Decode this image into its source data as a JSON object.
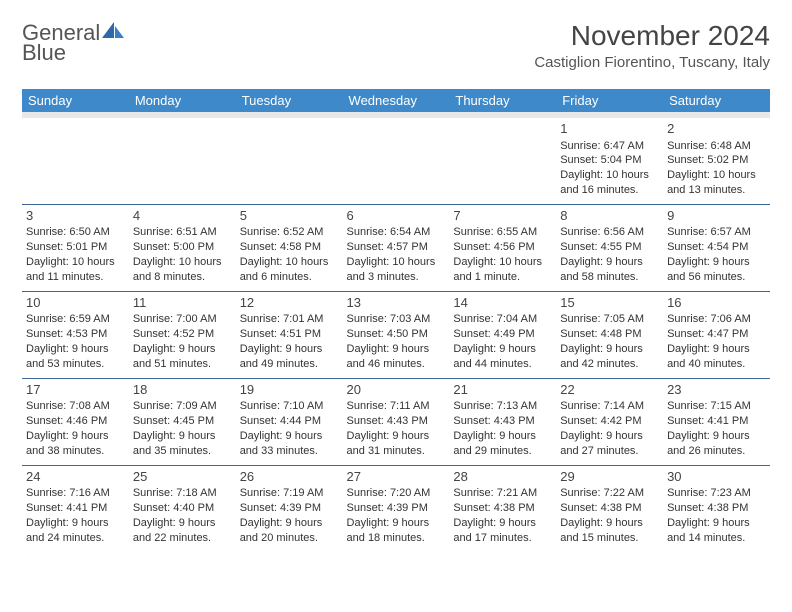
{
  "logo": {
    "text_a": "General",
    "text_b": "Blue"
  },
  "title": "November 2024",
  "location": "Castiglion Fiorentino, Tuscany, Italy",
  "colors": {
    "header_bg": "#3e89c9",
    "header_fg": "#ffffff",
    "divider": "#3e6a95",
    "spacer": "#e8e8e8",
    "text": "#333333",
    "logo_blue": "#3a7fc4"
  },
  "day_labels": [
    "Sunday",
    "Monday",
    "Tuesday",
    "Wednesday",
    "Thursday",
    "Friday",
    "Saturday"
  ],
  "weeks": [
    [
      null,
      null,
      null,
      null,
      null,
      {
        "n": "1",
        "sr": "Sunrise: 6:47 AM",
        "ss": "Sunset: 5:04 PM",
        "d1": "Daylight: 10 hours",
        "d2": "and 16 minutes."
      },
      {
        "n": "2",
        "sr": "Sunrise: 6:48 AM",
        "ss": "Sunset: 5:02 PM",
        "d1": "Daylight: 10 hours",
        "d2": "and 13 minutes."
      }
    ],
    [
      {
        "n": "3",
        "sr": "Sunrise: 6:50 AM",
        "ss": "Sunset: 5:01 PM",
        "d1": "Daylight: 10 hours",
        "d2": "and 11 minutes."
      },
      {
        "n": "4",
        "sr": "Sunrise: 6:51 AM",
        "ss": "Sunset: 5:00 PM",
        "d1": "Daylight: 10 hours",
        "d2": "and 8 minutes."
      },
      {
        "n": "5",
        "sr": "Sunrise: 6:52 AM",
        "ss": "Sunset: 4:58 PM",
        "d1": "Daylight: 10 hours",
        "d2": "and 6 minutes."
      },
      {
        "n": "6",
        "sr": "Sunrise: 6:54 AM",
        "ss": "Sunset: 4:57 PM",
        "d1": "Daylight: 10 hours",
        "d2": "and 3 minutes."
      },
      {
        "n": "7",
        "sr": "Sunrise: 6:55 AM",
        "ss": "Sunset: 4:56 PM",
        "d1": "Daylight: 10 hours",
        "d2": "and 1 minute."
      },
      {
        "n": "8",
        "sr": "Sunrise: 6:56 AM",
        "ss": "Sunset: 4:55 PM",
        "d1": "Daylight: 9 hours",
        "d2": "and 58 minutes."
      },
      {
        "n": "9",
        "sr": "Sunrise: 6:57 AM",
        "ss": "Sunset: 4:54 PM",
        "d1": "Daylight: 9 hours",
        "d2": "and 56 minutes."
      }
    ],
    [
      {
        "n": "10",
        "sr": "Sunrise: 6:59 AM",
        "ss": "Sunset: 4:53 PM",
        "d1": "Daylight: 9 hours",
        "d2": "and 53 minutes."
      },
      {
        "n": "11",
        "sr": "Sunrise: 7:00 AM",
        "ss": "Sunset: 4:52 PM",
        "d1": "Daylight: 9 hours",
        "d2": "and 51 minutes."
      },
      {
        "n": "12",
        "sr": "Sunrise: 7:01 AM",
        "ss": "Sunset: 4:51 PM",
        "d1": "Daylight: 9 hours",
        "d2": "and 49 minutes."
      },
      {
        "n": "13",
        "sr": "Sunrise: 7:03 AM",
        "ss": "Sunset: 4:50 PM",
        "d1": "Daylight: 9 hours",
        "d2": "and 46 minutes."
      },
      {
        "n": "14",
        "sr": "Sunrise: 7:04 AM",
        "ss": "Sunset: 4:49 PM",
        "d1": "Daylight: 9 hours",
        "d2": "and 44 minutes."
      },
      {
        "n": "15",
        "sr": "Sunrise: 7:05 AM",
        "ss": "Sunset: 4:48 PM",
        "d1": "Daylight: 9 hours",
        "d2": "and 42 minutes."
      },
      {
        "n": "16",
        "sr": "Sunrise: 7:06 AM",
        "ss": "Sunset: 4:47 PM",
        "d1": "Daylight: 9 hours",
        "d2": "and 40 minutes."
      }
    ],
    [
      {
        "n": "17",
        "sr": "Sunrise: 7:08 AM",
        "ss": "Sunset: 4:46 PM",
        "d1": "Daylight: 9 hours",
        "d2": "and 38 minutes."
      },
      {
        "n": "18",
        "sr": "Sunrise: 7:09 AM",
        "ss": "Sunset: 4:45 PM",
        "d1": "Daylight: 9 hours",
        "d2": "and 35 minutes."
      },
      {
        "n": "19",
        "sr": "Sunrise: 7:10 AM",
        "ss": "Sunset: 4:44 PM",
        "d1": "Daylight: 9 hours",
        "d2": "and 33 minutes."
      },
      {
        "n": "20",
        "sr": "Sunrise: 7:11 AM",
        "ss": "Sunset: 4:43 PM",
        "d1": "Daylight: 9 hours",
        "d2": "and 31 minutes."
      },
      {
        "n": "21",
        "sr": "Sunrise: 7:13 AM",
        "ss": "Sunset: 4:43 PM",
        "d1": "Daylight: 9 hours",
        "d2": "and 29 minutes."
      },
      {
        "n": "22",
        "sr": "Sunrise: 7:14 AM",
        "ss": "Sunset: 4:42 PM",
        "d1": "Daylight: 9 hours",
        "d2": "and 27 minutes."
      },
      {
        "n": "23",
        "sr": "Sunrise: 7:15 AM",
        "ss": "Sunset: 4:41 PM",
        "d1": "Daylight: 9 hours",
        "d2": "and 26 minutes."
      }
    ],
    [
      {
        "n": "24",
        "sr": "Sunrise: 7:16 AM",
        "ss": "Sunset: 4:41 PM",
        "d1": "Daylight: 9 hours",
        "d2": "and 24 minutes."
      },
      {
        "n": "25",
        "sr": "Sunrise: 7:18 AM",
        "ss": "Sunset: 4:40 PM",
        "d1": "Daylight: 9 hours",
        "d2": "and 22 minutes."
      },
      {
        "n": "26",
        "sr": "Sunrise: 7:19 AM",
        "ss": "Sunset: 4:39 PM",
        "d1": "Daylight: 9 hours",
        "d2": "and 20 minutes."
      },
      {
        "n": "27",
        "sr": "Sunrise: 7:20 AM",
        "ss": "Sunset: 4:39 PM",
        "d1": "Daylight: 9 hours",
        "d2": "and 18 minutes."
      },
      {
        "n": "28",
        "sr": "Sunrise: 7:21 AM",
        "ss": "Sunset: 4:38 PM",
        "d1": "Daylight: 9 hours",
        "d2": "and 17 minutes."
      },
      {
        "n": "29",
        "sr": "Sunrise: 7:22 AM",
        "ss": "Sunset: 4:38 PM",
        "d1": "Daylight: 9 hours",
        "d2": "and 15 minutes."
      },
      {
        "n": "30",
        "sr": "Sunrise: 7:23 AM",
        "ss": "Sunset: 4:38 PM",
        "d1": "Daylight: 9 hours",
        "d2": "and 14 minutes."
      }
    ]
  ]
}
